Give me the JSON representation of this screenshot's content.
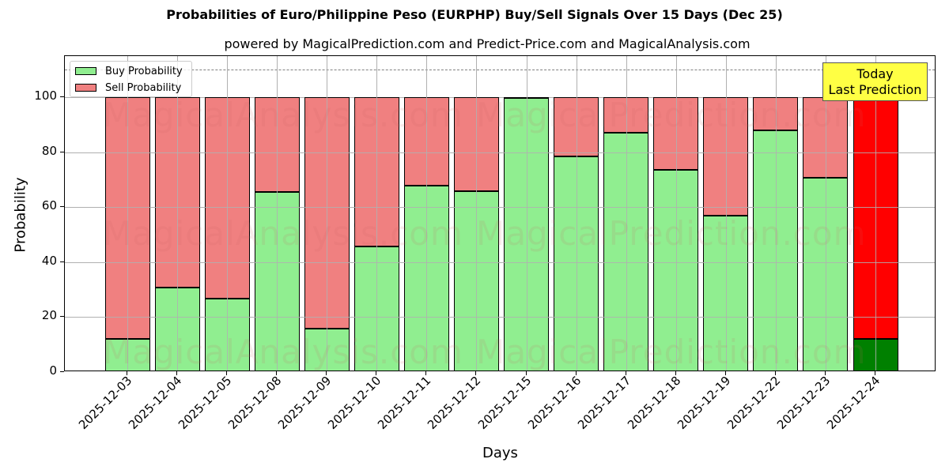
{
  "chart_data": {
    "type": "bar",
    "stacked": true,
    "title": "Probabilities of Euro/Philippine Peso (EURPHP) Buy/Sell Signals Over 15 Days (Dec 25)",
    "subtitle": "powered by MagicalPrediction.com and Predict-Price.com and MagicalAnalysis.com",
    "xlabel": "Days",
    "ylabel": "Probability",
    "ylim": [
      0,
      115
    ],
    "yticks": [
      0,
      20,
      40,
      60,
      80,
      100
    ],
    "grid": true,
    "legend_position": "upper left",
    "reference_line": {
      "y": 110,
      "style": "dashed",
      "color": "#808080"
    },
    "categories": [
      "2025-12-03",
      "2025-12-04",
      "2025-12-05",
      "2025-12-08",
      "2025-12-09",
      "2025-12-10",
      "2025-12-11",
      "2025-12-12",
      "2025-12-15",
      "2025-12-16",
      "2025-12-17",
      "2025-12-18",
      "2025-12-19",
      "2025-12-22",
      "2025-12-23",
      "2025-12-24"
    ],
    "series": [
      {
        "name": "Buy Probability",
        "color": "#90ee90",
        "values": [
          12.1,
          30.9,
          26.6,
          65.6,
          15.9,
          45.7,
          67.9,
          65.9,
          99.9,
          78.6,
          87.0,
          73.7,
          56.9,
          87.9,
          70.8,
          12.1
        ]
      },
      {
        "name": "Sell Probability",
        "color": "#f08080",
        "values": [
          87.9,
          69.1,
          73.4,
          34.4,
          84.1,
          54.3,
          32.1,
          34.1,
          0.1,
          21.4,
          13.0,
          26.3,
          43.1,
          12.1,
          29.2,
          87.9
        ]
      }
    ],
    "highlight": {
      "index": 15,
      "buy_color": "#008000",
      "sell_color": "#ff0000"
    },
    "annotations": [
      {
        "text": "Today\nLast Prediction",
        "line1": "Today",
        "line2": "Last Prediction",
        "x": "2025-12-24",
        "background": "#ffff44"
      }
    ],
    "watermarks": [
      "MagicalAnalysis.com",
      "MagicalPrediction.com"
    ]
  },
  "legend": {
    "buy_label": "Buy Probability",
    "sell_label": "Sell Probability"
  }
}
